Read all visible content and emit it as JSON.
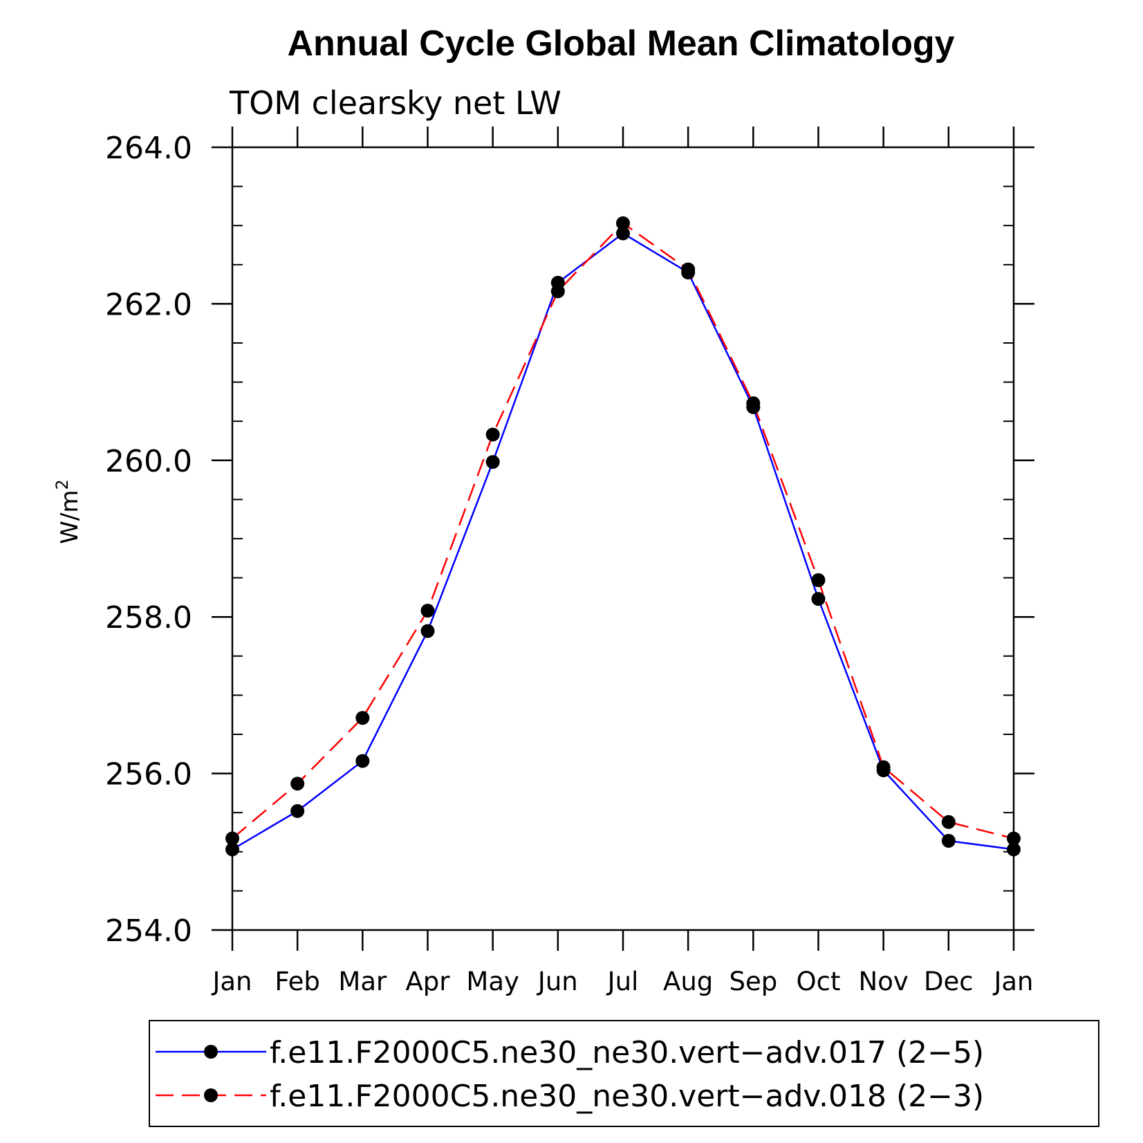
{
  "chart_data": {
    "type": "line",
    "title": "Annual Cycle Global Mean Climatology",
    "subtitle": "TOM clearsky net LW",
    "ylabel_base": "W/m",
    "ylabel_sup": "2",
    "categories": [
      "Jan",
      "Feb",
      "Mar",
      "Apr",
      "May",
      "Jun",
      "Jul",
      "Aug",
      "Sep",
      "Oct",
      "Nov",
      "Dec",
      "Jan"
    ],
    "yticks": [
      "254.0",
      "256.0",
      "258.0",
      "260.0",
      "262.0",
      "264.0"
    ],
    "ylim": [
      254,
      264
    ],
    "minor_step": 0.5,
    "grid": false,
    "legend_position": "bottom",
    "series": [
      {
        "name": "f.e11.F2000C5.ne30_ne30.vert−adv.017 (2−5)",
        "color": "#0000ff",
        "dash": "solid",
        "values": [
          255.03,
          255.52,
          256.16,
          257.82,
          259.98,
          262.27,
          262.9,
          262.4,
          260.68,
          258.23,
          256.04,
          255.14,
          255.03
        ]
      },
      {
        "name": "f.e11.F2000C5.ne30_ne30.vert−adv.018 (2−3)",
        "color": "#ff0000",
        "dash": "dashed",
        "values": [
          255.17,
          255.87,
          256.71,
          258.08,
          260.33,
          262.16,
          263.03,
          262.44,
          260.73,
          258.47,
          256.08,
          255.38,
          255.17
        ]
      }
    ]
  }
}
